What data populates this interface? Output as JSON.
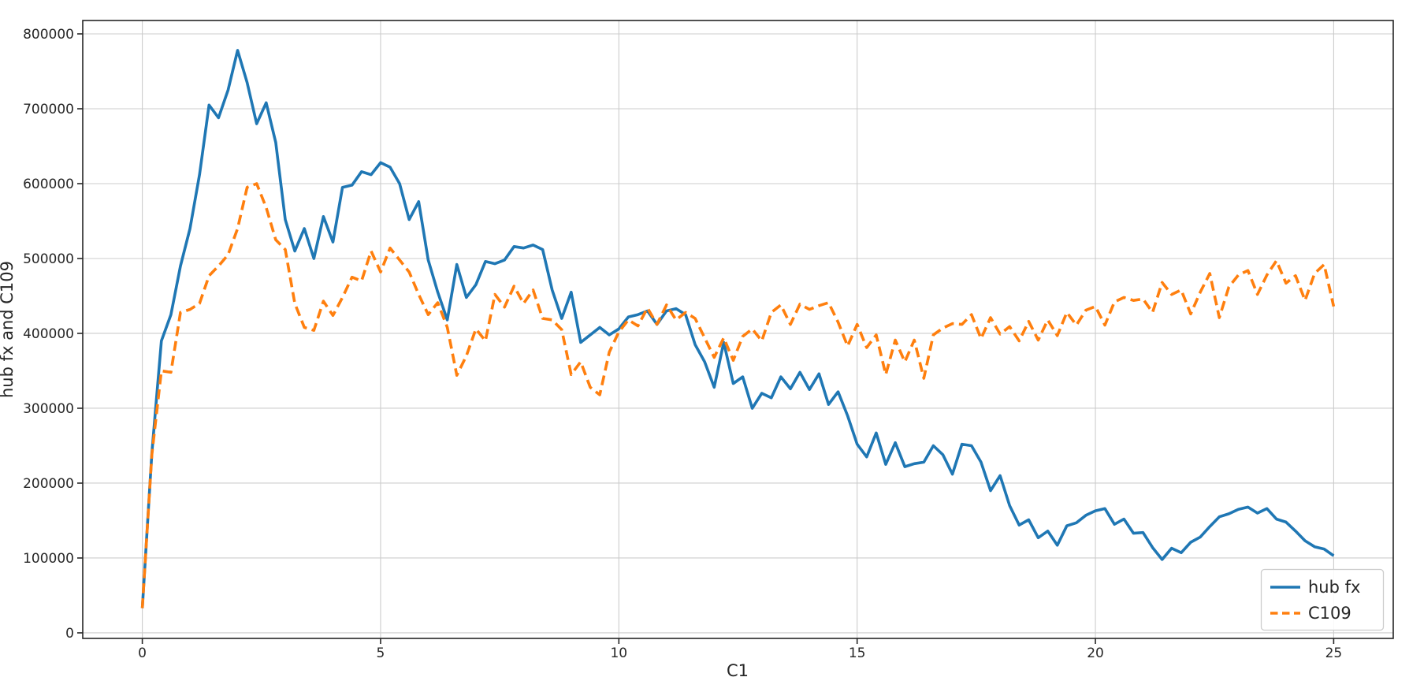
{
  "chart_data": {
    "type": "line",
    "title": "",
    "xlabel": "C1",
    "ylabel": "hub fx and C109",
    "grid": true,
    "legend_position": "lower right",
    "xlim": [
      -1.25,
      26.25
    ],
    "ylim": [
      -7400,
      817900
    ],
    "x_ticks": [
      0,
      5,
      10,
      15,
      20,
      25
    ],
    "y_ticks": [
      0,
      100000,
      200000,
      300000,
      400000,
      500000,
      600000,
      700000,
      800000
    ],
    "colors": {
      "hub_fx": "#1f77b4",
      "c109": "#ff7f0e",
      "grid": "#cccccc",
      "spine": "#262626",
      "legend_edge": "#cccccc"
    },
    "x": [
      0,
      0.2,
      0.4,
      0.6,
      0.8,
      1,
      1.2,
      1.4,
      1.6,
      1.8,
      2,
      2.2,
      2.4,
      2.6,
      2.8,
      3,
      3.2,
      3.4,
      3.6,
      3.8,
      4,
      4.2,
      4.4,
      4.6,
      4.8,
      5,
      5.2,
      5.4,
      5.6,
      5.8,
      6,
      6.2,
      6.4,
      6.6,
      6.8,
      7,
      7.2,
      7.4,
      7.6,
      7.8,
      8,
      8.2,
      8.4,
      8.6,
      8.8,
      9,
      9.2,
      9.4,
      9.6,
      9.8,
      10,
      10.2,
      10.4,
      10.6,
      10.8,
      11,
      11.2,
      11.4,
      11.6,
      11.8,
      12,
      12.2,
      12.4,
      12.6,
      12.8,
      13,
      13.2,
      13.4,
      13.6,
      13.8,
      14,
      14.2,
      14.4,
      14.6,
      14.8,
      15,
      15.2,
      15.4,
      15.6,
      15.8,
      16,
      16.2,
      16.4,
      16.6,
      16.8,
      17,
      17.2,
      17.4,
      17.6,
      17.8,
      18,
      18.2,
      18.4,
      18.6,
      18.8,
      19,
      19.2,
      19.4,
      19.6,
      19.8,
      20,
      20.2,
      20.4,
      20.6,
      20.8,
      21,
      21.2,
      21.4,
      21.6,
      21.8,
      22,
      22.2,
      22.4,
      22.6,
      22.8,
      23,
      23.2,
      23.4,
      23.6,
      23.8,
      24,
      24.2,
      24.4,
      24.6,
      24.8,
      25
    ],
    "series": [
      {
        "name": "hub fx",
        "color": "#1f77b4",
        "style": "solid",
        "values": [
          33000,
          240000,
          390000,
          425000,
          490000,
          540000,
          612000,
          705000,
          688000,
          725000,
          778000,
          735000,
          680000,
          708000,
          655000,
          552000,
          510000,
          540000,
          500000,
          556000,
          522000,
          595000,
          598000,
          616000,
          612000,
          628000,
          622000,
          600000,
          552000,
          576000,
          498000,
          455000,
          418000,
          492000,
          448000,
          465000,
          496000,
          493000,
          498000,
          516000,
          514000,
          518000,
          512000,
          458000,
          420000,
          455000,
          388000,
          398000,
          408000,
          398000,
          406000,
          422000,
          425000,
          430000,
          412000,
          430000,
          433000,
          425000,
          385000,
          362000,
          328000,
          388000,
          333000,
          342000,
          300000,
          320000,
          314000,
          342000,
          326000,
          348000,
          325000,
          346000,
          305000,
          322000,
          290000,
          252000,
          235000,
          267000,
          225000,
          254000,
          222000,
          226000,
          228000,
          250000,
          238000,
          212000,
          252000,
          250000,
          228000,
          190000,
          210000,
          170000,
          144000,
          151000,
          127000,
          136000,
          117000,
          143000,
          147000,
          157000,
          163000,
          166000,
          145000,
          152000,
          133000,
          134000,
          114000,
          98000,
          113000,
          107000,
          121000,
          128000,
          142000,
          155000,
          159000,
          165000,
          168000,
          160000,
          166000,
          152000,
          148000,
          136000,
          123000,
          115000,
          112000,
          103000
        ]
      },
      {
        "name": "C109",
        "color": "#ff7f0e",
        "style": "dashed",
        "values": [
          33000,
          238000,
          350000,
          348000,
          428000,
          432000,
          440000,
          477000,
          490000,
          505000,
          540000,
          595000,
          600000,
          568000,
          525000,
          512000,
          440000,
          408000,
          404000,
          443000,
          424000,
          448000,
          475000,
          470000,
          510000,
          482000,
          514000,
          498000,
          482000,
          452000,
          425000,
          441000,
          408000,
          344000,
          370000,
          406000,
          390000,
          452000,
          435000,
          463000,
          440000,
          458000,
          420000,
          418000,
          405000,
          345000,
          362000,
          328000,
          318000,
          375000,
          402000,
          418000,
          410000,
          434000,
          412000,
          438000,
          418000,
          428000,
          420000,
          394000,
          368000,
          394000,
          364000,
          396000,
          406000,
          390000,
          428000,
          438000,
          412000,
          439000,
          432000,
          437000,
          441000,
          415000,
          383000,
          412000,
          381000,
          398000,
          345000,
          391000,
          362000,
          391000,
          340000,
          398000,
          407000,
          413000,
          412000,
          425000,
          393000,
          421000,
          399000,
          409000,
          390000,
          416000,
          391000,
          418000,
          397000,
          428000,
          411000,
          431000,
          436000,
          411000,
          442000,
          448000,
          444000,
          446000,
          428000,
          468000,
          452000,
          458000,
          426000,
          455000,
          480000,
          421000,
          462000,
          478000,
          484000,
          452000,
          478000,
          497000,
          467000,
          477000,
          444000,
          480000,
          492000,
          436000
        ]
      }
    ]
  },
  "legend": {
    "items": [
      {
        "label": "hub fx"
      },
      {
        "label": "C109"
      }
    ]
  }
}
